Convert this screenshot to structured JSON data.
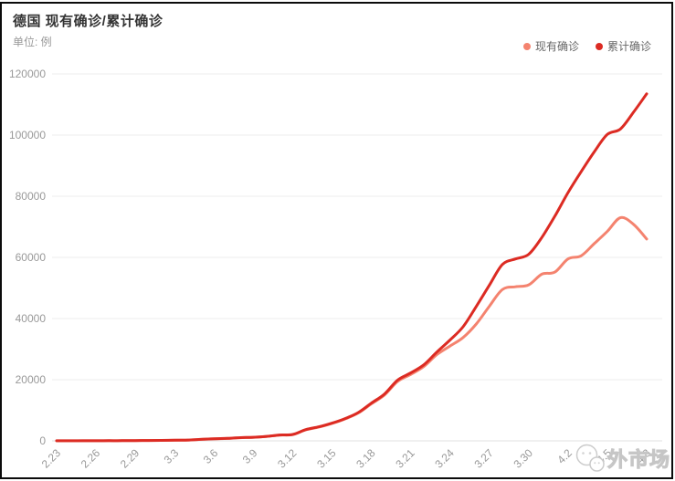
{
  "header": {
    "title": "德国 现有确诊/累计确诊",
    "unit": "单位: 例"
  },
  "watermark": {
    "text": "外市场",
    "icon": "wechat-bubbles-icon"
  },
  "chart_data": {
    "type": "line",
    "title": "德国 现有确诊/累计确诊",
    "unit_label": "单位: 例",
    "smooth": true,
    "grid": true,
    "legend_position": "top-right",
    "ylim": [
      0,
      120000
    ],
    "y_ticks": [
      0,
      20000,
      40000,
      60000,
      80000,
      100000,
      120000
    ],
    "x_tick_every": 3,
    "x": [
      "2.23",
      "2.24",
      "2.25",
      "2.26",
      "2.27",
      "2.28",
      "2.29",
      "3.1",
      "3.2",
      "3.3",
      "3.4",
      "3.5",
      "3.6",
      "3.7",
      "3.8",
      "3.9",
      "3.10",
      "3.11",
      "3.12",
      "3.13",
      "3.14",
      "3.15",
      "3.16",
      "3.17",
      "3.18",
      "3.19",
      "3.20",
      "3.21",
      "3.22",
      "3.23",
      "3.24",
      "3.25",
      "3.26",
      "3.27",
      "3.28",
      "3.29",
      "3.30",
      "3.31",
      "4.1",
      "4.2",
      "4.3",
      "4.4",
      "4.5",
      "4.6",
      "4.7",
      "4.8"
    ],
    "series": [
      {
        "name": "现有确诊",
        "color": "#f4836f",
        "values": [
          14,
          14,
          15,
          25,
          44,
          46,
          75,
          125,
          152,
          188,
          250,
          465,
          650,
          780,
          1015,
          1150,
          1425,
          1870,
          2030,
          3600,
          4500,
          5690,
          7150,
          9100,
          12100,
          15000,
          19400,
          21700,
          24300,
          28200,
          31000,
          33800,
          38200,
          44000,
          49500,
          50400,
          51000,
          54500,
          55200,
          59500,
          60500,
          64500,
          68500,
          73000,
          70800,
          66000
        ]
      },
      {
        "name": "累计确诊",
        "color": "#dc2b23",
        "values": [
          16,
          16,
          17,
          27,
          46,
          48,
          79,
          130,
          159,
          196,
          262,
          482,
          670,
          799,
          1040,
          1176,
          1457,
          1908,
          2078,
          3675,
          4585,
          5795,
          7272,
          9257,
          12327,
          15320,
          19848,
          22213,
          24873,
          29056,
          32986,
          37323,
          43938,
          50871,
          57695,
          59500,
          61000,
          66500,
          73500,
          81200,
          88000,
          94500,
          100200,
          102000,
          107500,
          113500
        ]
      }
    ],
    "colors": {
      "grid_line": "#eeeeee",
      "axis_line": "#e0e0e0",
      "tick_label": "#999999",
      "title_text": "#333333",
      "subtitle_text": "#999999",
      "legend_text": "#666666"
    }
  }
}
